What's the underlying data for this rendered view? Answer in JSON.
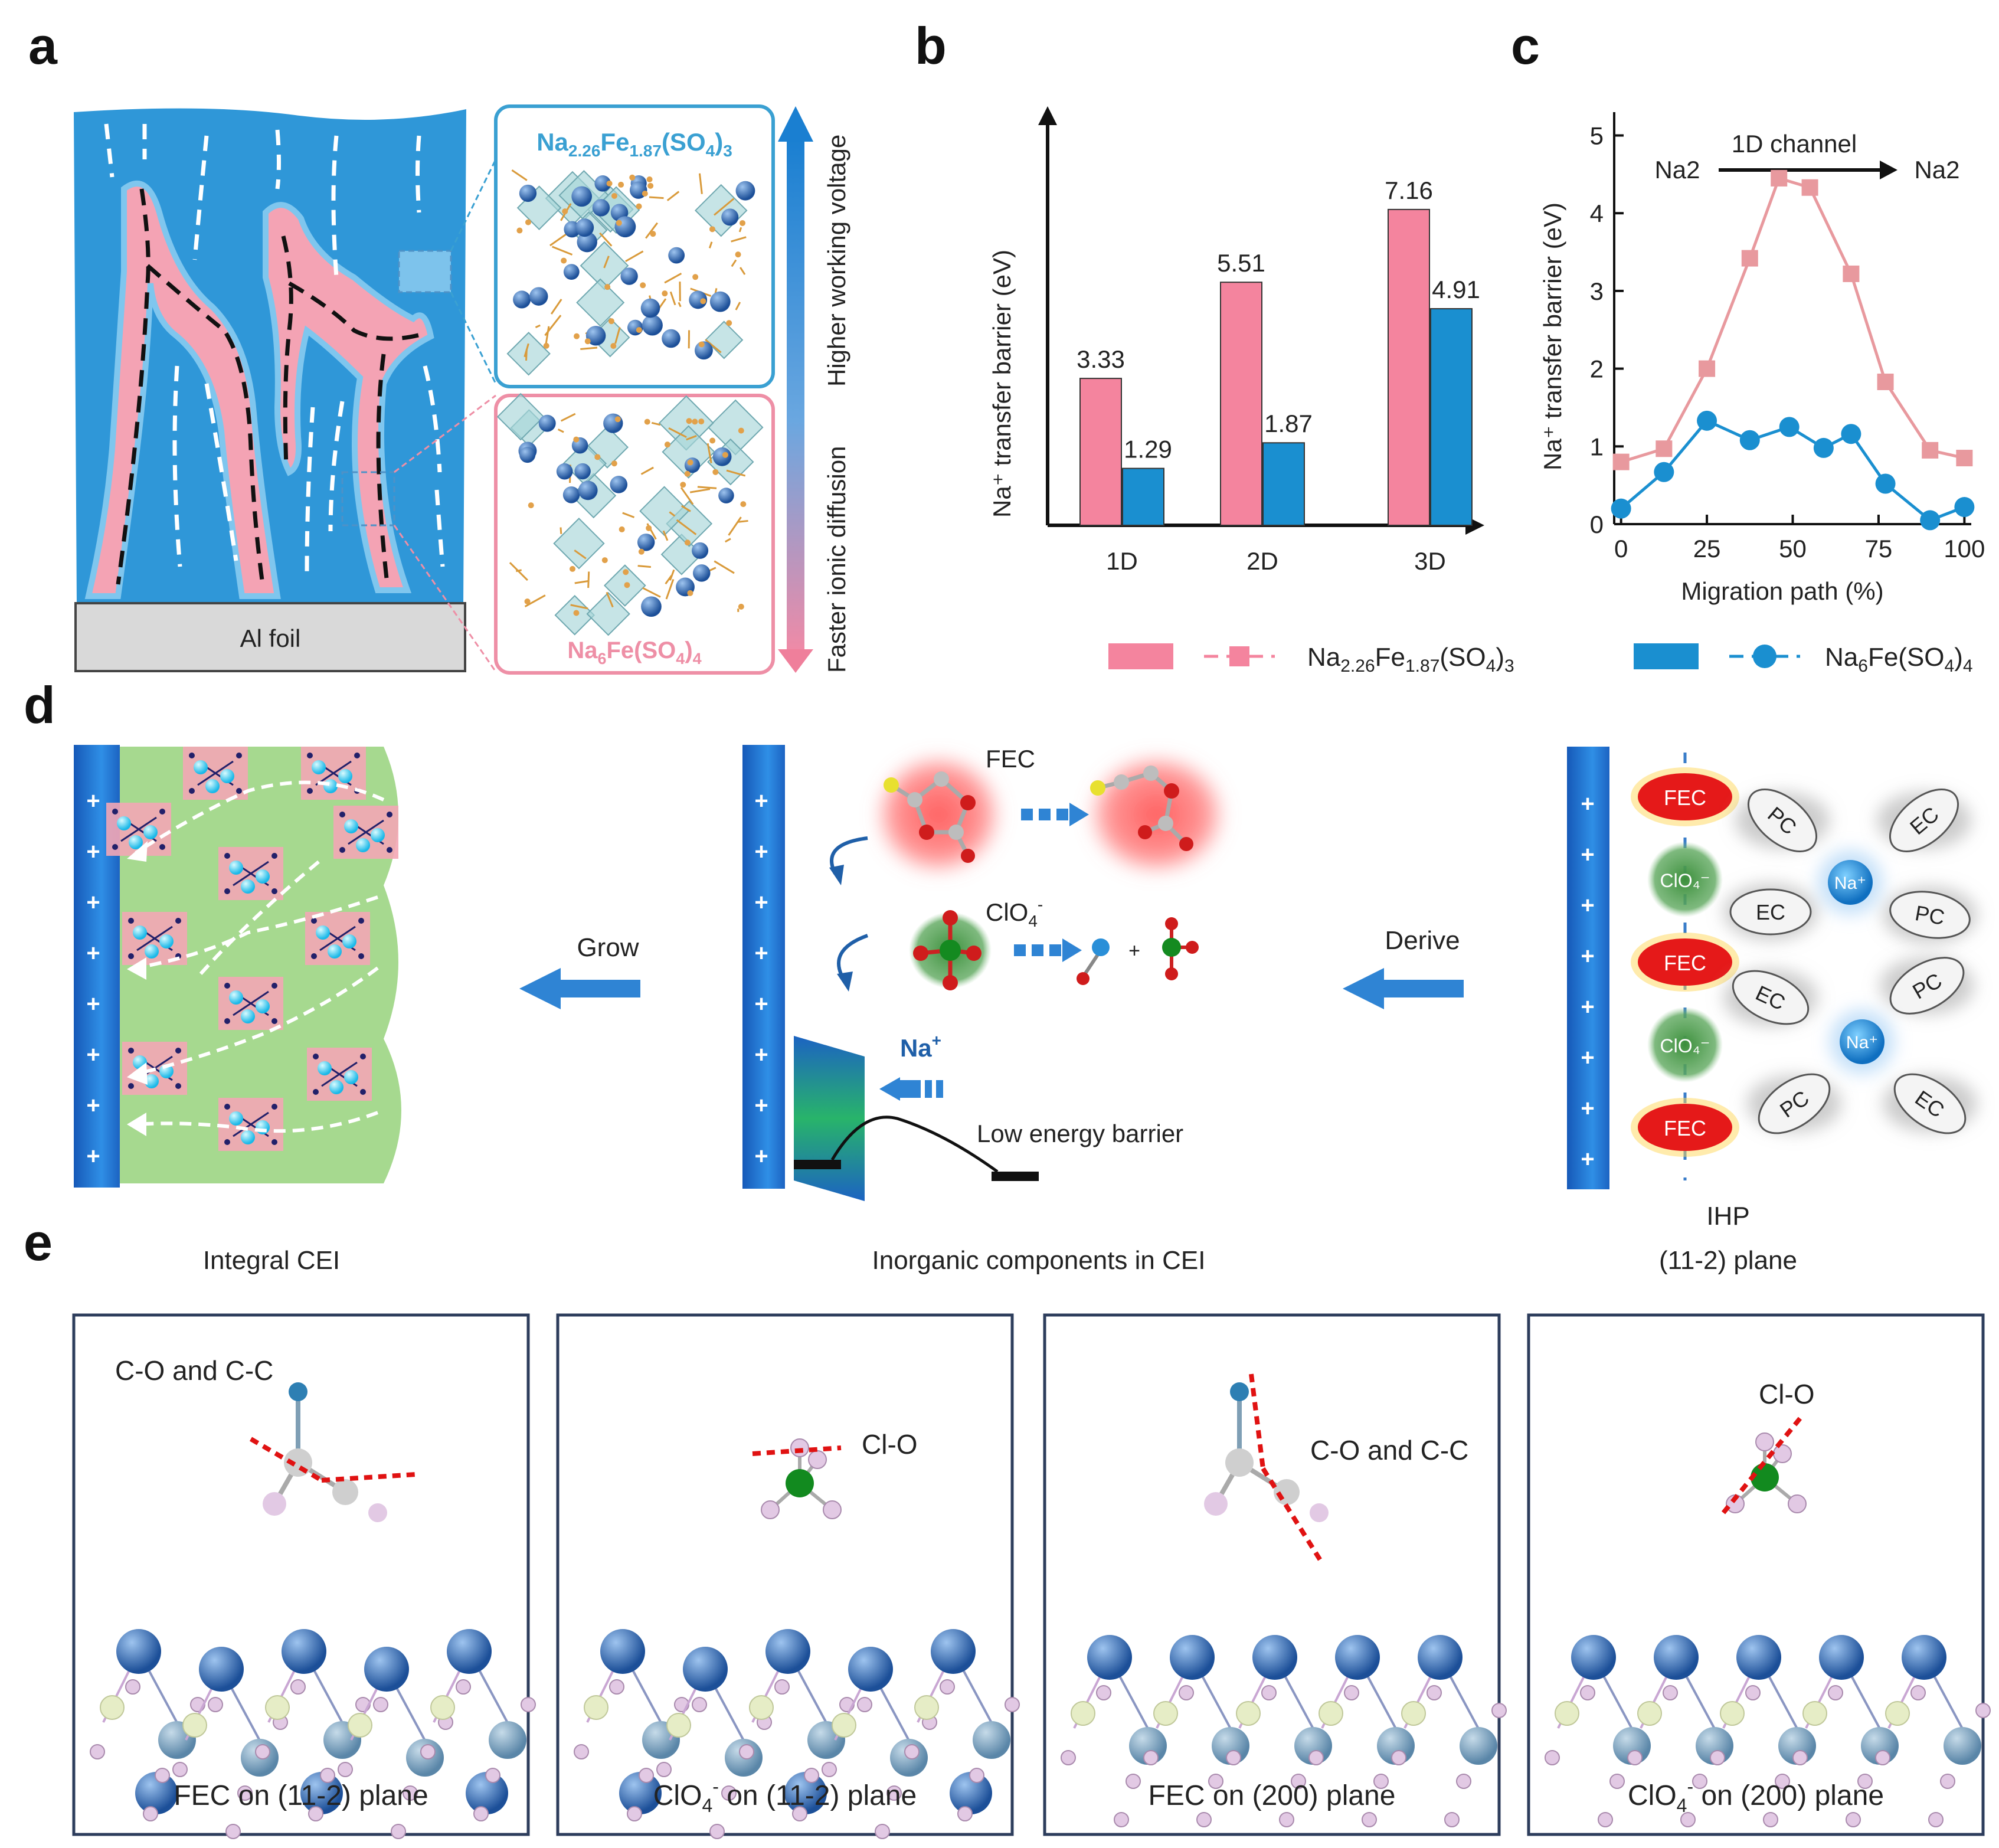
{
  "panel_labels": {
    "a": "a",
    "b": "b",
    "c": "c",
    "d": "d",
    "e": "e"
  },
  "panel_a": {
    "foil_label": "Al foil",
    "upper_material": {
      "base": "Na",
      "s1": "2.26",
      "mid": "Fe",
      "s2": "1.87",
      "rest": "(SO",
      "s3": "4",
      "close": ")",
      "s4": "3"
    },
    "lower_material": {
      "base": "Na",
      "s1": "6",
      "mid": "Fe(SO",
      "s2": "4",
      "close": ")",
      "s3": "4"
    },
    "arrow_up_label": "Higher working voltage",
    "arrow_down_label": "Faster ionic diffusion",
    "colors": {
      "electrolyte": "#2f97d8",
      "cathode": "#f4a3b4",
      "upper_box": "#3aa0d2",
      "lower_box": "#ee8fa6"
    }
  },
  "legend": {
    "pink_formula": {
      "base": "Na",
      "s1": "2.26",
      "mid": "Fe",
      "s2": "1.87",
      "rest": "(SO",
      "s3": "4",
      "close": ")",
      "s4": "3"
    },
    "blue_formula": {
      "base": "Na",
      "s1": "6",
      "mid": "Fe(SO",
      "s2": "4",
      "close": ")",
      "s3": "4"
    },
    "pink": "#f4849e",
    "blue": "#1a8fd0"
  },
  "chart_data": [
    {
      "type": "bar",
      "panel": "b",
      "title": "",
      "xlabel": "",
      "ylabel": "Na⁺ transfer barrier (eV)",
      "categories": [
        "1D",
        "2D",
        "3D"
      ],
      "series": [
        {
          "name": "Na2.26Fe1.87(SO4)3",
          "color": "#f4849e",
          "values": [
            3.33,
            5.51,
            7.16
          ]
        },
        {
          "name": "Na6Fe(SO4)4",
          "color": "#1a8fd0",
          "values": [
            1.29,
            1.87,
            4.91
          ]
        }
      ],
      "value_labels": [
        [
          "3.33",
          "5.51",
          "7.16"
        ],
        [
          "1.29",
          "1.87",
          "4.91"
        ]
      ],
      "ylim": [
        0,
        9.5
      ]
    },
    {
      "type": "line",
      "panel": "c",
      "xlabel": "Migration path (%)",
      "ylabel": "Na⁺ transfer barrier (eV)",
      "xlim": [
        -2,
        102
      ],
      "ylim": [
        0,
        5.3
      ],
      "xticks": [
        0,
        25,
        50,
        75,
        100
      ],
      "yticks": [
        0,
        1,
        2,
        3,
        4,
        5
      ],
      "annotation": {
        "left": "Na2",
        "right": "Na2",
        "channel": "1D channel"
      },
      "series": [
        {
          "name": "Na2.26Fe1.87(SO4)3",
          "color": "#e8999e",
          "marker": "square",
          "x": [
            0,
            12.5,
            25,
            37.5,
            46,
            55,
            67,
            77,
            90,
            100
          ],
          "y": [
            0.8,
            0.97,
            2.0,
            3.42,
            4.45,
            4.33,
            3.22,
            1.83,
            0.95,
            0.85
          ]
        },
        {
          "name": "Na6Fe(SO4)4",
          "color": "#1a8fd0",
          "marker": "circle",
          "x": [
            0,
            12.5,
            25,
            37.5,
            49,
            59,
            67,
            77,
            90,
            100
          ],
          "y": [
            0.2,
            0.67,
            1.33,
            1.08,
            1.25,
            0.98,
            1.16,
            0.52,
            0.05,
            0.22
          ]
        }
      ]
    }
  ],
  "panel_d": {
    "left_caption": "Integral CEI",
    "middle_caption": "Inorganic components in CEI",
    "right_caption_1": "IHP",
    "right_caption_2": "(11-2) plane",
    "grow_label": "Grow",
    "derive_label": "Derive",
    "fec_label": "FEC",
    "clo4_label": {
      "base": "ClO",
      "sub": "4",
      "sup": "-"
    },
    "na_label": {
      "base": "Na",
      "sup": "+"
    },
    "barrier_label": "Low energy barrier",
    "plus": "+",
    "ihp_ovals": [
      "FEC",
      "ClO₄⁻",
      "FEC",
      "ClO₄⁻",
      "FEC"
    ],
    "solvents": [
      "PC",
      "EC",
      "EC",
      "PC",
      "EC",
      "PC",
      "PC",
      "EC"
    ],
    "na_ion": "Na⁺"
  },
  "panel_e": {
    "boxes": [
      {
        "bond_label": "C-O and C-C",
        "caption": "FEC on (11-2) plane"
      },
      {
        "bond_label": "Cl-O",
        "caption": {
          "base": "ClO",
          "sub": "4",
          "sup": "-",
          "rest": " on (11-2) plane"
        }
      },
      {
        "bond_label": "C-O and C-C",
        "caption": "FEC on (200) plane"
      },
      {
        "bond_label": "Cl-O",
        "caption": {
          "base": "ClO",
          "sub": "4",
          "sup": "-",
          "rest": " on (200) plane"
        }
      }
    ]
  }
}
